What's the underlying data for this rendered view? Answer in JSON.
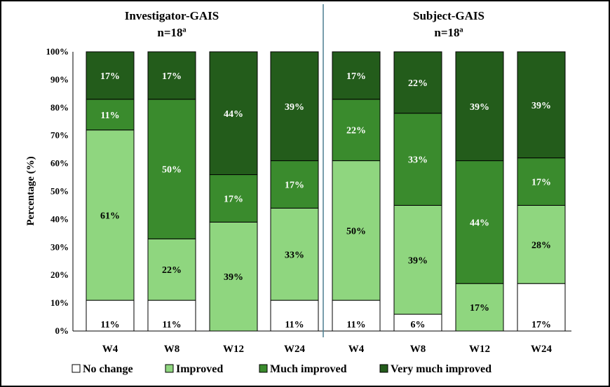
{
  "chart_data": [
    {
      "type": "bar",
      "stacked": true,
      "percent_stacked": true,
      "title": "Investigator-GAIS",
      "subtitle": "n=18ª",
      "ylabel": "Percentage (%)",
      "ylim": [
        0,
        100
      ],
      "yticks": [
        "0%",
        "10%",
        "20%",
        "30%",
        "40%",
        "50%",
        "60%",
        "70%",
        "80%",
        "90%",
        "100%"
      ],
      "categories": [
        "W4",
        "W8",
        "W12",
        "W24"
      ],
      "series": [
        {
          "name": "No change",
          "values": [
            11,
            11,
            0,
            11
          ],
          "labels": [
            "11%",
            "11%",
            "",
            "11%"
          ]
        },
        {
          "name": "Improved",
          "values": [
            61,
            22,
            39,
            33
          ],
          "labels": [
            "61%",
            "22%",
            "39%",
            "33%"
          ]
        },
        {
          "name": "Much improved",
          "values": [
            11,
            50,
            17,
            17
          ],
          "labels": [
            "11%",
            "50%",
            "17%",
            "17%"
          ]
        },
        {
          "name": "Very much improved",
          "values": [
            17,
            17,
            44,
            39
          ],
          "labels": [
            "17%",
            "17%",
            "44%",
            "39%"
          ]
        }
      ]
    },
    {
      "type": "bar",
      "stacked": true,
      "percent_stacked": true,
      "title": "Subject-GAIS",
      "subtitle": "n=18ª",
      "ylim": [
        0,
        100
      ],
      "categories": [
        "W4",
        "W8",
        "W12",
        "W24"
      ],
      "series": [
        {
          "name": "No change",
          "values": [
            11,
            6,
            0,
            17
          ],
          "labels": [
            "11%",
            "6%",
            "",
            "17%"
          ]
        },
        {
          "name": "Improved",
          "values": [
            50,
            39,
            17,
            28
          ],
          "labels": [
            "50%",
            "39%",
            "17%",
            "28%"
          ]
        },
        {
          "name": "Much improved",
          "values": [
            22,
            33,
            44,
            17
          ],
          "labels": [
            "22%",
            "33%",
            "44%",
            "17%"
          ]
        },
        {
          "name": "Very much improved",
          "values": [
            17,
            22,
            39,
            39
          ],
          "labels": [
            "17%",
            "22%",
            "39%",
            "39%"
          ]
        }
      ]
    }
  ],
  "legend": {
    "placement": "bottom",
    "items": [
      "No change",
      "Improved",
      "Much improved",
      "Very much improved"
    ]
  },
  "colors": {
    "No change": "#ffffff",
    "Improved": "#8fd67f",
    "Much improved": "#3a8b2d",
    "Very much improved": "#235c1b",
    "divider": "#4b7f91"
  }
}
